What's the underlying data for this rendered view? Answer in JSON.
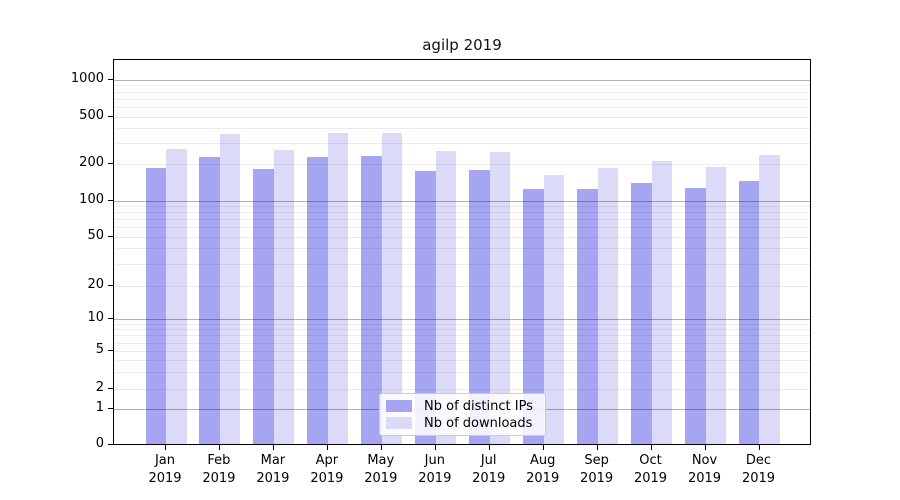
{
  "chart_data": {
    "type": "bar",
    "title": "agilp 2019",
    "year_label": "2019",
    "categories": [
      "Jan",
      "Feb",
      "Mar",
      "Apr",
      "May",
      "Jun",
      "Jul",
      "Aug",
      "Sep",
      "Oct",
      "Nov",
      "Dec"
    ],
    "series": [
      {
        "name": "Nb of distinct IPs",
        "color": "#a5a5f2",
        "values": [
          180,
          222,
          178,
          222,
          230,
          171,
          176,
          122,
          122,
          137,
          125,
          141
        ]
      },
      {
        "name": "Nb of downloads",
        "color": "#dbdbf9",
        "values": [
          260,
          355,
          258,
          358,
          360,
          251,
          246,
          160,
          180,
          206,
          185,
          235
        ]
      }
    ],
    "xlabel": "",
    "ylabel": "",
    "yscale": "log",
    "ylim": [
      0,
      1450
    ],
    "yticks": [
      0,
      1,
      2,
      5,
      10,
      20,
      50,
      100,
      200,
      500,
      1000
    ],
    "grid": true,
    "legend_position": "bottom-center"
  }
}
